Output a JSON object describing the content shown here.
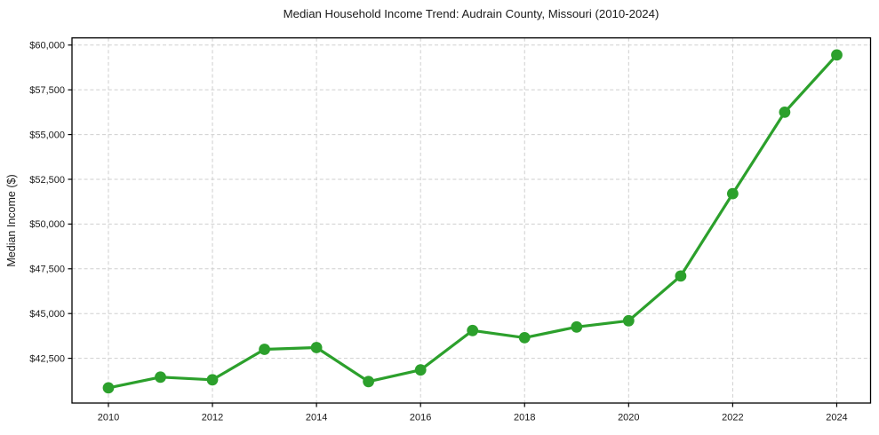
{
  "chart_data": {
    "type": "line",
    "title": "Median Household Income Trend: Audrain County, Missouri (2010-2024)",
    "xlabel": "",
    "ylabel": "Median Income ($)",
    "x": [
      2010,
      2011,
      2012,
      2013,
      2014,
      2015,
      2016,
      2017,
      2018,
      2019,
      2020,
      2021,
      2022,
      2023,
      2024
    ],
    "values": [
      40850,
      41450,
      41300,
      43000,
      43100,
      41200,
      41850,
      44050,
      43650,
      44250,
      44600,
      47100,
      51700,
      56250,
      59450
    ],
    "xlim": [
      2009.3,
      2024.65
    ],
    "ylim": [
      40000,
      60400
    ],
    "xticks": [
      2010,
      2012,
      2014,
      2016,
      2018,
      2020,
      2022,
      2024
    ],
    "xtick_labels": [
      "2010",
      "2012",
      "2014",
      "2016",
      "2018",
      "2020",
      "2022",
      "2024"
    ],
    "yticks": [
      42500,
      45000,
      47500,
      50000,
      52500,
      55000,
      57500,
      60000
    ],
    "ytick_labels": [
      "$42,500",
      "$45,000",
      "$47,500",
      "$50,000",
      "$52,500",
      "$55,000",
      "$57,500",
      "$60,000"
    ],
    "grid": true,
    "legend_position": "none",
    "line_color": "#2ca02c",
    "marker_color": "#2ca02c",
    "grid_color": "#cfcfcf",
    "spine_color": "#000000",
    "background_color": "#ffffff"
  }
}
